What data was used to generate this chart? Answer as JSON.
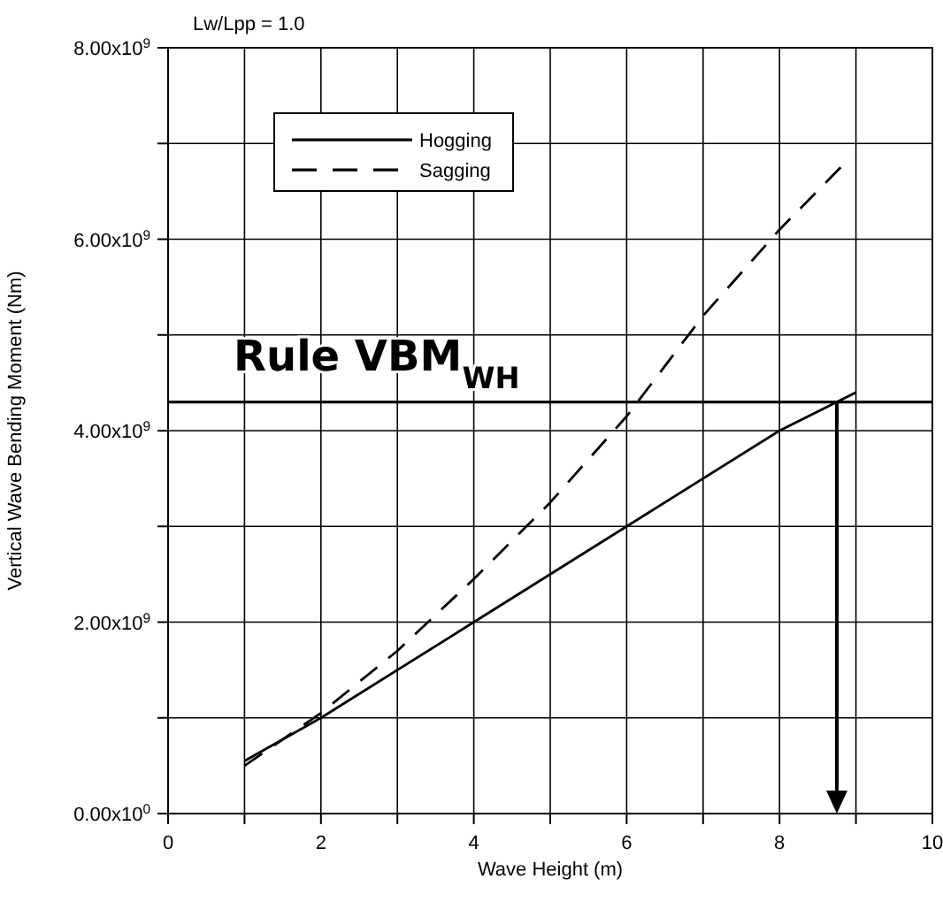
{
  "chart_data": {
    "type": "line",
    "title": "Lw/Lpp = 1.0",
    "xlabel": "Wave Height (m)",
    "ylabel": "Vertical Wave Bending Moment (Nm)",
    "xlim": [
      0,
      10
    ],
    "ylim": [
      0,
      8000000000
    ],
    "xticks": [
      0,
      {
        "value": 1,
        "label": null
      },
      2,
      {
        "value": 3,
        "label": null
      },
      4,
      {
        "value": 5,
        "label": null
      },
      6,
      {
        "value": 7,
        "label": null
      },
      8,
      {
        "value": 9,
        "label": null
      },
      10
    ],
    "yticks": [
      {
        "value": 0,
        "label": "0.00x10$^{0}$"
      },
      {
        "value": 1000000000,
        "label": null
      },
      {
        "value": 2000000000,
        "label": "2.00x10$^{9}$"
      },
      {
        "value": 3000000000,
        "label": null
      },
      {
        "value": 4000000000,
        "label": "4.00x10$^{9}$"
      },
      {
        "value": 5000000000,
        "label": null
      },
      {
        "value": 6000000000,
        "label": "6.00x10$^{9}$"
      },
      {
        "value": 7000000000,
        "label": null
      },
      {
        "value": 8000000000,
        "label": "8.00x10$^{9}$"
      }
    ],
    "grid": true,
    "legend": "top left",
    "marker": "none",
    "series": [
      {
        "name": "Hogging",
        "color": "#000000",
        "line_style": "solid",
        "x": [
          1,
          2,
          4,
          6,
          8,
          9
        ],
        "values": [
          550000000,
          1000000000,
          2000000000,
          3000000000,
          4000000000,
          4400000000
        ]
      },
      {
        "name": "Sagging",
        "color": "#000000",
        "line_style": "dashed",
        "x": [
          1,
          2,
          3,
          4,
          5,
          6,
          7,
          8,
          8.8
        ],
        "values": [
          500000000,
          1050000000,
          1700000000,
          2450000000,
          3250000000,
          4150000000,
          5200000000,
          6100000000,
          6750000000
        ]
      }
    ],
    "ref_lines": [
      {
        "axis": "y",
        "value": 4300000000,
        "label": "Rule VBM$_{WH}$",
        "color": "#000000"
      }
    ]
  }
}
